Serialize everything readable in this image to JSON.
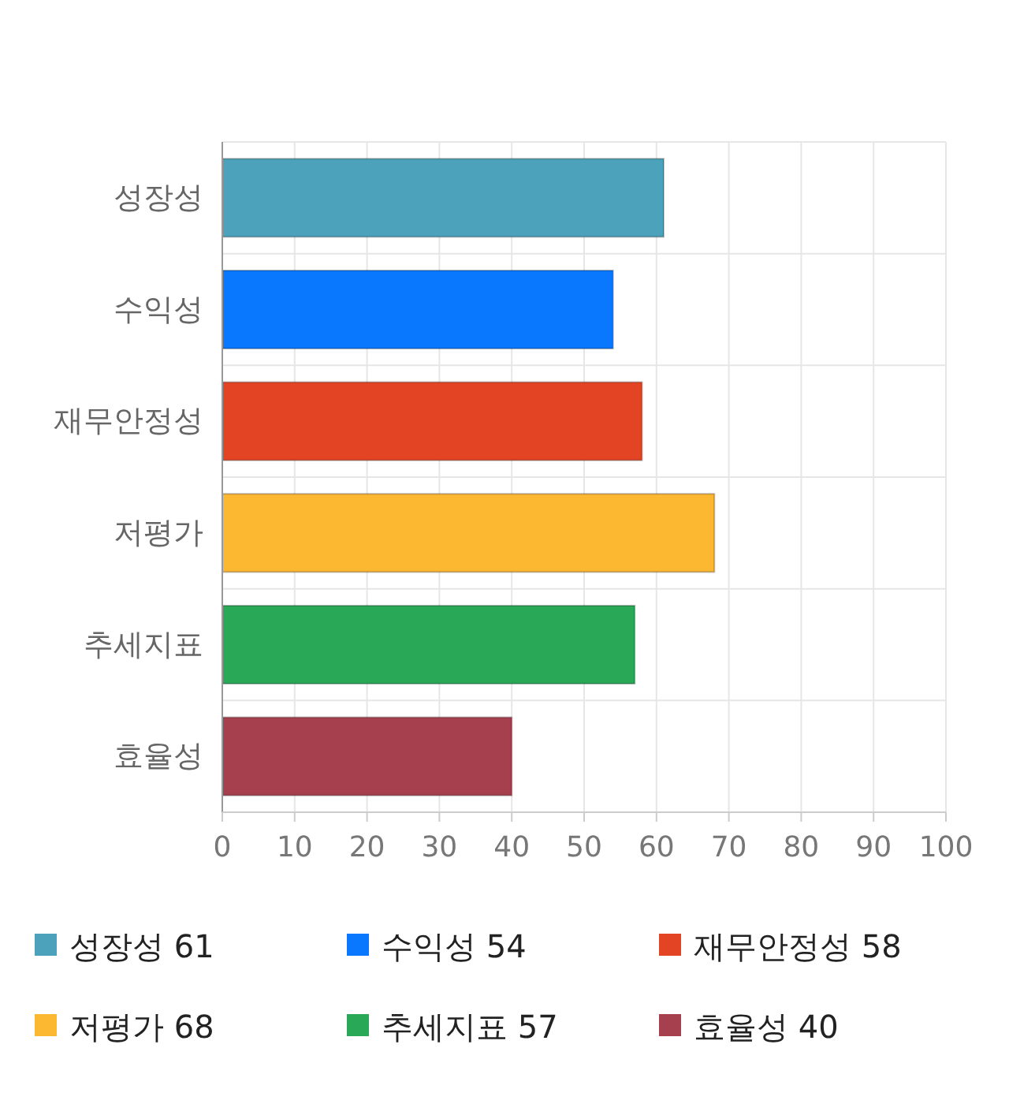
{
  "chart_data": {
    "type": "bar",
    "orientation": "horizontal",
    "stacked": true,
    "categories": [
      "성장성",
      "수익성",
      "재무안정성",
      "저평가",
      "추세지표",
      "효율성"
    ],
    "series": [
      {
        "name": "성장성 61",
        "color": "#4ba2ba",
        "values": [
          61,
          null,
          null,
          null,
          null,
          null
        ]
      },
      {
        "name": "수익성 54",
        "color": "#0a78fe",
        "values": [
          null,
          54,
          null,
          null,
          null,
          null
        ]
      },
      {
        "name": "재무안정성 58",
        "color": "#e34524",
        "values": [
          null,
          null,
          58,
          null,
          null,
          null
        ]
      },
      {
        "name": "저평가 68",
        "color": "#fdb832",
        "values": [
          null,
          null,
          null,
          68,
          null,
          null
        ]
      },
      {
        "name": "추세지표 57",
        "color": "#29a857",
        "values": [
          null,
          null,
          null,
          null,
          57,
          null
        ]
      },
      {
        "name": "효율성 40",
        "color": "#a6404f",
        "values": [
          null,
          null,
          null,
          null,
          null,
          40
        ]
      }
    ],
    "xlim": [
      0,
      100
    ],
    "xticks": [
      0,
      10,
      20,
      30,
      40,
      50,
      60,
      70,
      80,
      90,
      100
    ],
    "grid": true,
    "legend": "bottom"
  }
}
